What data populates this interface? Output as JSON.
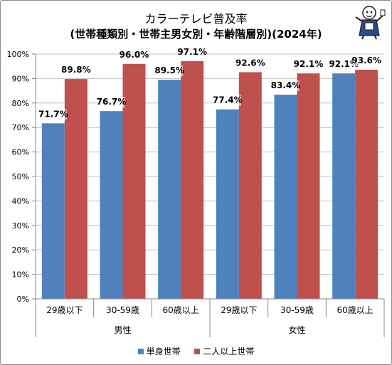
{
  "chart_data": {
    "type": "bar",
    "title": "カラーテレビ普及率",
    "subtitle": "(世帯種類別・世帯主男女別・年齢階層別)(2024年)",
    "categories": [
      "29歳以下",
      "30-59歳",
      "60歳以上",
      "29歳以下",
      "30-59歳",
      "60歳以上"
    ],
    "groups": [
      {
        "label": "男性",
        "categories": [
          "29歳以下",
          "30-59歳",
          "60歳以上"
        ]
      },
      {
        "label": "女性",
        "categories": [
          "29歳以下",
          "30-59歳",
          "60歳以上"
        ]
      }
    ],
    "series": [
      {
        "name": "単身世帯",
        "color": "#4f81bd",
        "values": [
          71.7,
          76.7,
          89.5,
          77.4,
          83.4,
          92.1
        ],
        "labels": [
          "71.7%",
          "76.7%",
          "89.5%",
          "77.4%",
          "83.4%",
          "92.1%"
        ]
      },
      {
        "name": "二人以上世帯",
        "color": "#c0504d",
        "values": [
          89.8,
          96.0,
          97.1,
          92.6,
          92.1,
          93.6
        ],
        "labels": [
          "89.8%",
          "96.0%",
          "97.1%",
          "92.6%",
          "92.1%",
          "93.6%"
        ]
      }
    ],
    "yticks": [
      "0%",
      "10%",
      "20%",
      "30%",
      "40%",
      "50%",
      "60%",
      "70%",
      "80%",
      "90%",
      "100%"
    ],
    "ylim": [
      0,
      100
    ],
    "grid": true,
    "legend_position": "bottom"
  }
}
